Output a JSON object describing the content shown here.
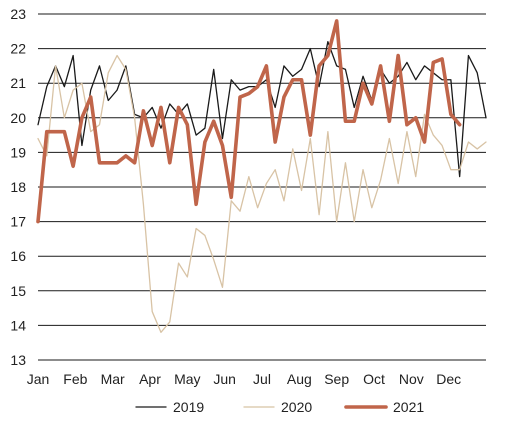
{
  "chart_data": {
    "type": "line",
    "title": "",
    "xlabel": "",
    "ylabel": "",
    "ylim": [
      13,
      23
    ],
    "yticks": [
      13,
      14,
      15,
      16,
      17,
      18,
      19,
      20,
      21,
      22,
      23
    ],
    "xticks": [
      "Jan",
      "Feb",
      "Mar",
      "Apr",
      "May",
      "Jun",
      "Jul",
      "Aug",
      "Sep",
      "Oct",
      "Nov",
      "Dec"
    ],
    "x": [
      1,
      2,
      3,
      4,
      5,
      6,
      7,
      8,
      9,
      10,
      11,
      12,
      13,
      14,
      15,
      16,
      17,
      18,
      19,
      20,
      21,
      22,
      23,
      24,
      25,
      26,
      27,
      28,
      29,
      30,
      31,
      32,
      33,
      34,
      35,
      36,
      37,
      38,
      39,
      40,
      41,
      42,
      43,
      44,
      45,
      46,
      47,
      48,
      49,
      50,
      51,
      52
    ],
    "x_unit": "week",
    "grid": "horizontal",
    "legend_position": "bottom",
    "series": [
      {
        "name": "2019",
        "color": "#1a1a1a",
        "width": "thin",
        "values": [
          19.8,
          20.9,
          21.5,
          20.9,
          21.8,
          19.2,
          20.8,
          21.5,
          20.5,
          20.8,
          21.5,
          20.1,
          20.0,
          20.3,
          19.7,
          20.4,
          20.1,
          20.4,
          19.5,
          19.7,
          21.4,
          19.4,
          21.1,
          20.8,
          20.9,
          20.9,
          21.1,
          20.3,
          21.5,
          21.2,
          21.4,
          22.0,
          20.9,
          22.2,
          21.5,
          21.4,
          20.3,
          21.2,
          20.5,
          21.4,
          21.0,
          21.2,
          21.6,
          21.1,
          21.5,
          21.3,
          21.1,
          21.1,
          18.3,
          21.8,
          21.3,
          20.0
        ]
      },
      {
        "name": "2020",
        "color": "#d8c3a5",
        "width": "thin",
        "values": [
          19.4,
          18.9,
          21.5,
          20.0,
          20.8,
          21.0,
          19.6,
          19.8,
          21.3,
          21.8,
          21.4,
          20.0,
          17.5,
          14.4,
          13.8,
          14.1,
          15.8,
          15.4,
          16.8,
          16.6,
          15.9,
          15.1,
          17.6,
          17.3,
          18.3,
          17.4,
          18.1,
          18.5,
          17.6,
          19.1,
          17.9,
          19.4,
          17.2,
          19.6,
          17.0,
          18.7,
          17.0,
          18.5,
          17.4,
          18.2,
          19.4,
          18.1,
          19.6,
          18.3,
          20.1,
          19.5,
          19.2,
          18.5,
          18.5,
          19.3,
          19.1,
          19.3
        ]
      },
      {
        "name": "2021",
        "color": "#c0654a",
        "width": "thick",
        "values": [
          17.0,
          19.6,
          19.6,
          19.6,
          18.6,
          20.0,
          20.6,
          18.7,
          18.7,
          18.7,
          18.9,
          18.7,
          20.2,
          19.2,
          20.3,
          18.7,
          20.3,
          19.8,
          17.5,
          19.3,
          19.9,
          19.2,
          17.7,
          20.6,
          20.7,
          20.9,
          21.5,
          19.3,
          20.6,
          21.1,
          21.1,
          19.5,
          21.5,
          21.8,
          22.8,
          19.9,
          19.9,
          21.0,
          20.4,
          21.5,
          19.9,
          21.8,
          19.8,
          20.0,
          19.3,
          21.6,
          21.7,
          20.1,
          19.8,
          null,
          null,
          null
        ]
      }
    ]
  }
}
